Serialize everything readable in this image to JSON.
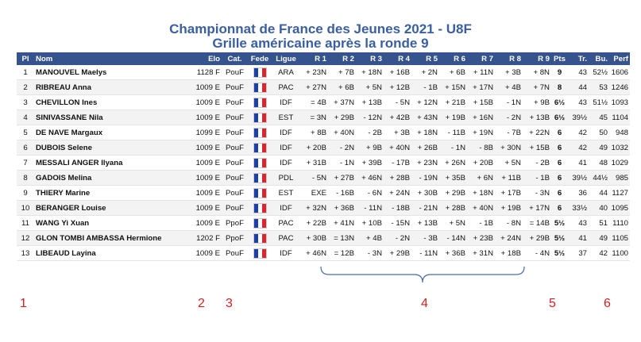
{
  "title_line1": "Championnat de France des Jeunes 2021 - U8F",
  "title_line2": "Grille américaine après la ronde 9",
  "headers": [
    "Pl",
    "Nom",
    "Elo",
    "Cat.",
    "Fede",
    "Ligue",
    "R 1",
    "R 2",
    "R 3",
    "R 4",
    "R 5",
    "R 6",
    "R 7",
    "R 8",
    "R 9",
    "Pts",
    "Tr.",
    "Bu.",
    "Perf"
  ],
  "flag_colors": [
    "#1f3fa8",
    "#ffffff",
    "#d8262f"
  ],
  "rows": [
    {
      "pl": "1",
      "nom": "MANOUVEL Maelys",
      "elo": "1128 F",
      "cat": "PouF",
      "ligue": "ARA",
      "r": [
        "+ 23N",
        "+ 7B",
        "+ 18N",
        "+ 16B",
        "+ 2N",
        "+ 6B",
        "+ 11N",
        "+ 3B",
        "+ 8N"
      ],
      "pts": "9",
      "tr": "43",
      "bu": "52½",
      "perf": "1606"
    },
    {
      "pl": "2",
      "nom": "RIBREAU Anna",
      "elo": "1009 E",
      "cat": "PouF",
      "ligue": "PAC",
      "r": [
        "+ 27N",
        "+ 6B",
        "+ 5N",
        "+ 12B",
        "- 1B",
        "+ 15N",
        "+ 17N",
        "+ 4B",
        "+ 7N"
      ],
      "pts": "8",
      "tr": "44",
      "bu": "53",
      "perf": "1246"
    },
    {
      "pl": "3",
      "nom": "CHEVILLON Ines",
      "elo": "1009 E",
      "cat": "PouF",
      "ligue": "IDF",
      "r": [
        "= 4B",
        "+ 37N",
        "+ 13B",
        "- 5N",
        "+ 12N",
        "+ 21B",
        "+ 15B",
        "- 1N",
        "+ 9B"
      ],
      "pts": "6½",
      "tr": "43",
      "bu": "51½",
      "perf": "1093"
    },
    {
      "pl": "4",
      "nom": "SINIVASSANE Nila",
      "elo": "1009 E",
      "cat": "PouF",
      "ligue": "EST",
      "r": [
        "= 3N",
        "+ 29B",
        "- 12N",
        "+ 42B",
        "+ 43N",
        "+ 19B",
        "+ 16N",
        "- 2N",
        "+ 13B"
      ],
      "pts": "6½",
      "tr": "39½",
      "bu": "45",
      "perf": "1104"
    },
    {
      "pl": "5",
      "nom": "DE NAVE Margaux",
      "elo": "1099 E",
      "cat": "PouF",
      "ligue": "IDF",
      "r": [
        "+ 8B",
        "+ 40N",
        "- 2B",
        "+ 3B",
        "+ 18N",
        "- 11B",
        "+ 19N",
        "- 7B",
        "+ 22N"
      ],
      "pts": "6",
      "tr": "42",
      "bu": "50",
      "perf": "948"
    },
    {
      "pl": "6",
      "nom": "DUBOIS Selene",
      "elo": "1009 E",
      "cat": "PouF",
      "ligue": "IDF",
      "r": [
        "+ 20B",
        "- 2N",
        "+ 9B",
        "+ 40N",
        "+ 26B",
        "- 1N",
        "- 8B",
        "+ 30N",
        "+ 15B"
      ],
      "pts": "6",
      "tr": "42",
      "bu": "49",
      "perf": "1032"
    },
    {
      "pl": "7",
      "nom": "MESSALI ANGER Ilyana",
      "elo": "1009 E",
      "cat": "PouF",
      "ligue": "IDF",
      "r": [
        "+ 31B",
        "- 1N",
        "+ 39B",
        "- 17B",
        "+ 23N",
        "+ 26N",
        "+ 20B",
        "+ 5N",
        "- 2B"
      ],
      "pts": "6",
      "tr": "41",
      "bu": "48",
      "perf": "1029"
    },
    {
      "pl": "8",
      "nom": "GADOIS Melina",
      "elo": "1009 E",
      "cat": "PouF",
      "ligue": "PDL",
      "r": [
        "- 5N",
        "+ 27B",
        "+ 46N",
        "+ 28B",
        "- 19N",
        "+ 35B",
        "+ 6N",
        "+ 11B",
        "- 1B"
      ],
      "pts": "6",
      "tr": "39½",
      "bu": "44½",
      "perf": "985"
    },
    {
      "pl": "9",
      "nom": "THIERY Marine",
      "elo": "1009 E",
      "cat": "PouF",
      "ligue": "EST",
      "r": [
        "EXE",
        "- 16B",
        "- 6N",
        "+ 24N",
        "+ 30B",
        "+ 29B",
        "+ 18N",
        "+ 17B",
        "- 3N"
      ],
      "pts": "6",
      "tr": "36",
      "bu": "44",
      "perf": "1127"
    },
    {
      "pl": "10",
      "nom": "BERANGER Louise",
      "elo": "1009 E",
      "cat": "PouF",
      "ligue": "IDF",
      "r": [
        "+ 32N",
        "+ 36B",
        "- 11N",
        "- 18B",
        "- 21N",
        "+ 28B",
        "+ 40N",
        "+ 19B",
        "+ 17N"
      ],
      "pts": "6",
      "tr": "33½",
      "bu": "40",
      "perf": "1095"
    },
    {
      "pl": "11",
      "nom": "WANG Yi Xuan",
      "elo": "1009 E",
      "cat": "PpoF",
      "ligue": "PAC",
      "r": [
        "+ 22B",
        "+ 41N",
        "+ 10B",
        "- 15N",
        "+ 13B",
        "+ 5N",
        "- 1B",
        "- 8N",
        "= 14B"
      ],
      "pts": "5½",
      "tr": "43",
      "bu": "51",
      "perf": "1110"
    },
    {
      "pl": "12",
      "nom": "GLON TOMBI AMBASSA Hermione",
      "elo": "1202 F",
      "cat": "PpoF",
      "ligue": "PAC",
      "r": [
        "+ 30B",
        "= 13N",
        "+ 4B",
        "- 2N",
        "- 3B",
        "- 14N",
        "+ 23B",
        "+ 24N",
        "+ 29B"
      ],
      "pts": "5½",
      "tr": "41",
      "bu": "49",
      "perf": "1105"
    },
    {
      "pl": "13",
      "nom": "LIBEAUD Layina",
      "elo": "1009 E",
      "cat": "PouF",
      "ligue": "IDF",
      "r": [
        "+ 46N",
        "= 12B",
        "- 3N",
        "+ 29B",
        "- 11N",
        "+ 36B",
        "+ 31N",
        "+ 18B",
        "- 4N"
      ],
      "pts": "5½",
      "tr": "37",
      "bu": "42",
      "perf": "1100"
    }
  ],
  "markers": [
    "1",
    "2",
    "3",
    "4",
    "5",
    "6"
  ]
}
